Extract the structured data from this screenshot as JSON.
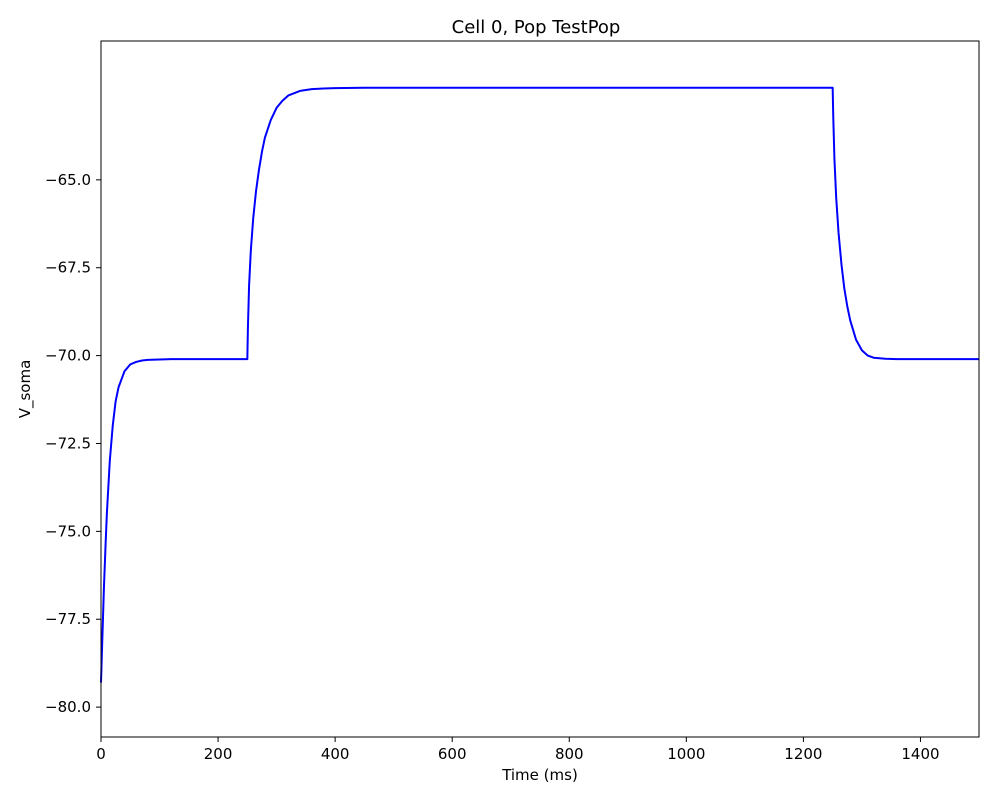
{
  "chart_data": {
    "type": "line",
    "title": "Cell 0, Pop TestPop",
    "xlabel": "Time (ms)",
    "ylabel": "V_soma",
    "xlim": [
      0,
      1500
    ],
    "ylim": [
      -80.85,
      -61.05
    ],
    "x_ticks": [
      0,
      200,
      400,
      600,
      800,
      1000,
      1200,
      1400
    ],
    "x_tick_labels": [
      "0",
      "200",
      "400",
      "600",
      "800",
      "1000",
      "1200",
      "1400"
    ],
    "y_ticks": [
      -80.0,
      -77.5,
      -75.0,
      -72.5,
      -70.0,
      -67.5,
      -65.0
    ],
    "y_tick_labels": [
      "−80.0",
      "−77.5",
      "−75.0",
      "−72.5",
      "−70.0",
      "−67.5",
      "−65.0"
    ],
    "grid": false,
    "series": [
      {
        "color": "#0000ff",
        "x": [
          0,
          2,
          5,
          8,
          10,
          15,
          20,
          25,
          30,
          40,
          50,
          60,
          70,
          80,
          100,
          120,
          150,
          200,
          250,
          251,
          253,
          256,
          260,
          265,
          270,
          275,
          280,
          290,
          300,
          310,
          320,
          340,
          360,
          380,
          400,
          450,
          500,
          600,
          800,
          1000,
          1200,
          1250,
          1251,
          1253,
          1256,
          1260,
          1265,
          1270,
          1275,
          1280,
          1290,
          1300,
          1310,
          1320,
          1340,
          1360,
          1380,
          1400,
          1450,
          1500
        ],
        "y": [
          -79.3,
          -78.2,
          -76.6,
          -75.3,
          -74.5,
          -73.0,
          -72.0,
          -71.3,
          -70.9,
          -70.45,
          -70.25,
          -70.18,
          -70.14,
          -70.12,
          -70.11,
          -70.1,
          -70.1,
          -70.1,
          -70.1,
          -69.2,
          -68.0,
          -67.0,
          -66.1,
          -65.3,
          -64.7,
          -64.2,
          -63.8,
          -63.3,
          -62.95,
          -62.75,
          -62.6,
          -62.47,
          -62.42,
          -62.4,
          -62.39,
          -62.38,
          -62.38,
          -62.38,
          -62.38,
          -62.38,
          -62.38,
          -62.38,
          -63.2,
          -64.4,
          -65.5,
          -66.5,
          -67.4,
          -68.1,
          -68.6,
          -69.0,
          -69.55,
          -69.85,
          -70.0,
          -70.06,
          -70.09,
          -70.1,
          -70.1,
          -70.1,
          -70.1,
          -70.1
        ]
      }
    ]
  }
}
